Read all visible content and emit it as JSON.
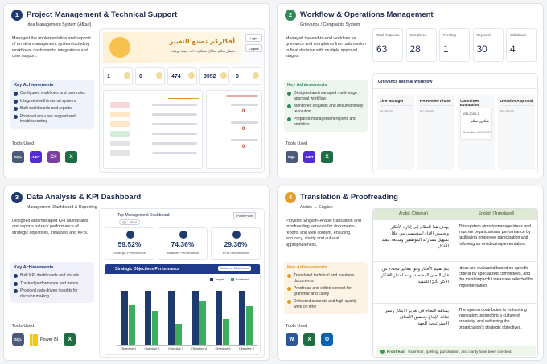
{
  "cards": [
    {
      "number": "1",
      "title": "Project Management & Technical Support",
      "subtitle": "Idea Management System (Afkari)",
      "description": "Managed the implementation and support of an idea management system including workflows, dashboards, integrations and user support.",
      "achievements_title": "Key Achievements",
      "achievements": [
        "Configured workflows and user roles",
        "Integrated with internal systems",
        "Built dashboards and reports",
        "Provided end-user support and troubleshooting"
      ],
      "tools_title": "Tools Used",
      "tools": [
        {
          "label": "SQL",
          "color": "#4a5a7a"
        },
        {
          "label": ".NET",
          "color": "#512bd4"
        },
        {
          "label": "C#",
          "color": "#7b3fa0"
        },
        {
          "label": "X",
          "color": "#1d6f42"
        }
      ]
    },
    {
      "number": "2",
      "title": "Workflow & Operations Management",
      "subtitle": "Grievance / Complaints System",
      "description": "Managed the end-to-end workflow for grievance and complaints from submission to final decision with multiple approval stages.",
      "achievements_title": "Key Achievements",
      "achievements": [
        "Designed and managed multi-stage approval workflow",
        "Monitored requests and ensured timely resolution",
        "Prepared management reports and analytics"
      ],
      "tools_title": "Tools Used",
      "tools": [
        {
          "label": "SQL",
          "color": "#4a5a7a"
        },
        {
          "label": ".NET",
          "color": "#512bd4"
        },
        {
          "label": "X",
          "color": "#1d6f42"
        }
      ]
    },
    {
      "number": "3",
      "title": "Data Analysis & KPI Dashboard",
      "subtitle": "Management Dashboard & Reporting",
      "description": "Designed and managed KPI dashboards and reports to track performance of strategic objectives, initiatives and KPIs.",
      "achievements_title": "Key Achievements",
      "achievements": [
        "Built KPI dashboards and visuals",
        "Tracked performance and trends",
        "Provided data-driven insights for decision making"
      ],
      "tools_title": "Tools Used",
      "tools": [
        {
          "label": "SQL",
          "color": "#4a5a7a"
        },
        {
          "label": "Power BI",
          "color": "#f2c811"
        },
        {
          "label": "X",
          "color": "#1d6f42"
        }
      ]
    },
    {
      "number": "4",
      "title": "Translation & Proofreading",
      "subtitle": "Arabic ↔ English",
      "description": "Provided English–Arabic translation and proofreading services for documents, reports and web content, ensuring accuracy, clarity and cultural appropriateness.",
      "achievements_title": "Key Achievements",
      "achievements": [
        "Translated technical and business documents",
        "Proofread and edited content for grammar and clarity",
        "Delivered accurate and high-quality work on time"
      ],
      "tools_title": "Tools Used",
      "tools": [
        {
          "label": "W",
          "color": "#2b579a"
        },
        {
          "label": "X",
          "color": "#1d6f42"
        },
        {
          "label": "O",
          "color": "#0a64ad"
        }
      ]
    }
  ],
  "afkari": {
    "banner_title": "أفكاركم تصنع التغيير",
    "banner_subtitle": "ننتظر منكم أفكارًا مبتكرة ذات قيمة نوعية",
    "buttons": [
      "Login",
      "Logout"
    ],
    "stats": [
      1,
      0,
      474,
      3952,
      0
    ],
    "right_values": [
      0,
      0,
      0
    ]
  },
  "grievance": {
    "stats": [
      {
        "label": "Total Requests",
        "value": 63
      },
      {
        "label": "Completed",
        "value": 28
      },
      {
        "label": "Pending",
        "value": 1
      },
      {
        "label": "Rejected",
        "value": 30
      },
      {
        "label": "Withdrawn",
        "value": 4
      }
    ],
    "workflow_title": "Grievance Internal Workflow",
    "columns": [
      {
        "name": "Line Manager",
        "empty": "No Items"
      },
      {
        "name": "HR Review Phase",
        "empty": "No Items"
      },
      {
        "name": "Committee Evaluation",
        "item": {
          "id": "GR-2025-5",
          "title": "شكوى تظلم",
          "date": "Submitted: 08/06/2024"
        }
      },
      {
        "name": "Decision Approval",
        "empty": "No Items"
      }
    ]
  },
  "kpi_dashboard": {
    "title": "Top Management Dashboard",
    "period": "Q1 - 2024",
    "export": "PowerPoint",
    "kpis": [
      {
        "value": "59.52%",
        "label": "Strategic Performance"
      },
      {
        "value": "74.36%",
        "label": "Initiatives Performance"
      },
      {
        "value": "29.36%",
        "label": "KPIs Performance"
      }
    ],
    "chart": {
      "type": "bar",
      "title": "Strategic Objectives Performance",
      "button": "Switch to Table View",
      "categories": [
        "Objective 1",
        "Objective 2",
        "Objective 3",
        "Objective 4",
        "Objective 5",
        "Objective 6"
      ],
      "series": [
        {
          "name": "Target",
          "color": "#1f3a6e",
          "values": [
            100,
            100,
            100,
            100,
            100,
            100
          ]
        },
        {
          "name": "Achieved",
          "color": "#3cae5c",
          "values": [
            74.73,
            62,
            38,
            82,
            47,
            71
          ]
        }
      ],
      "ylim": [
        0,
        110
      ]
    }
  },
  "translation": {
    "headers": [
      "Arabic (Original)",
      "English (Translated)"
    ],
    "rows": [
      [
        "يهدف هذا النظام إلى إدارة الأفكار وتحسين الأداء المؤسسي من خلال تسهيل مشاركة الموظفين ومتابعة تنفيذ الأفكار",
        "This system aims to manage ideas and improve organizational performance by facilitating employee participation and following up on idea implementation."
      ],
      [
        "يتم تقييم الأفكار وفق معايير محددة من قبل اللجان المختصة، ويتم اختيار الأفكار الأكثر تأثيرًا للتنفيذ",
        "Ideas are evaluated based on specific criteria by specialized committees, and the most impactful ideas are selected for implementation."
      ],
      [
        "يساهم النظام في تعزيز الابتكار ونشر ثقافة الإبداع وتحقيق الأهداف الاستراتيجية للجهة",
        "The system contributes to enhancing innovation, promoting a culture of creativity, and achieving the organization's strategic objectives."
      ]
    ],
    "note_label": "Proofread:",
    "note": "Grammar, spelling, punctuation, and clarity have been checked."
  }
}
